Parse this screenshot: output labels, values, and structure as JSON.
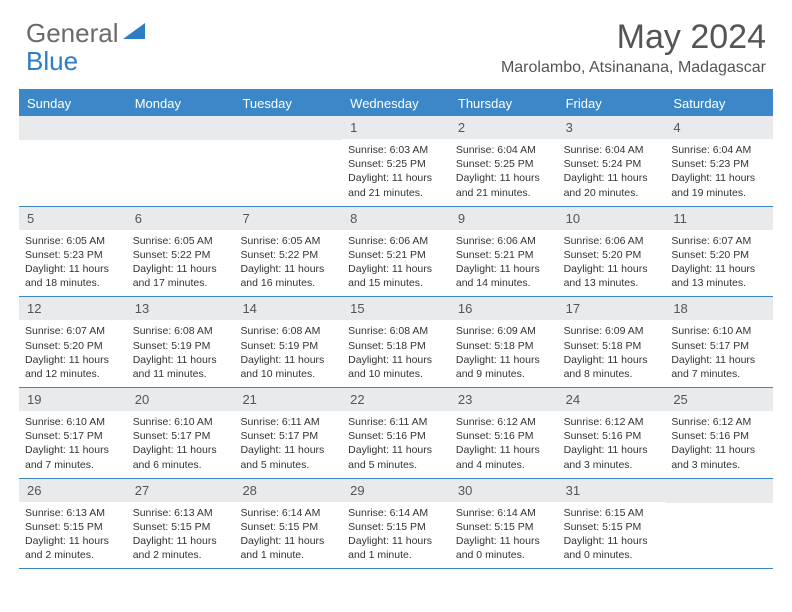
{
  "logo": {
    "text1": "General",
    "text2": "Blue"
  },
  "title": "May 2024",
  "location": "Marolambo, Atsinanana, Madagascar",
  "colors": {
    "header_bg": "#3b87c8",
    "header_fg": "#ffffff",
    "daynum_bg": "#e9eaec",
    "daynum_fg": "#555555",
    "text": "#333333",
    "rule": "#3b87c8",
    "logo_gray": "#6a6a6a",
    "logo_blue": "#2d7dc4"
  },
  "day_headers": [
    "Sunday",
    "Monday",
    "Tuesday",
    "Wednesday",
    "Thursday",
    "Friday",
    "Saturday"
  ],
  "weeks": [
    [
      {
        "n": "",
        "sr": "",
        "ss": "",
        "dl": ""
      },
      {
        "n": "",
        "sr": "",
        "ss": "",
        "dl": ""
      },
      {
        "n": "",
        "sr": "",
        "ss": "",
        "dl": ""
      },
      {
        "n": "1",
        "sr": "6:03 AM",
        "ss": "5:25 PM",
        "dl": "11 hours and 21 minutes."
      },
      {
        "n": "2",
        "sr": "6:04 AM",
        "ss": "5:25 PM",
        "dl": "11 hours and 21 minutes."
      },
      {
        "n": "3",
        "sr": "6:04 AM",
        "ss": "5:24 PM",
        "dl": "11 hours and 20 minutes."
      },
      {
        "n": "4",
        "sr": "6:04 AM",
        "ss": "5:23 PM",
        "dl": "11 hours and 19 minutes."
      }
    ],
    [
      {
        "n": "5",
        "sr": "6:05 AM",
        "ss": "5:23 PM",
        "dl": "11 hours and 18 minutes."
      },
      {
        "n": "6",
        "sr": "6:05 AM",
        "ss": "5:22 PM",
        "dl": "11 hours and 17 minutes."
      },
      {
        "n": "7",
        "sr": "6:05 AM",
        "ss": "5:22 PM",
        "dl": "11 hours and 16 minutes."
      },
      {
        "n": "8",
        "sr": "6:06 AM",
        "ss": "5:21 PM",
        "dl": "11 hours and 15 minutes."
      },
      {
        "n": "9",
        "sr": "6:06 AM",
        "ss": "5:21 PM",
        "dl": "11 hours and 14 minutes."
      },
      {
        "n": "10",
        "sr": "6:06 AM",
        "ss": "5:20 PM",
        "dl": "11 hours and 13 minutes."
      },
      {
        "n": "11",
        "sr": "6:07 AM",
        "ss": "5:20 PM",
        "dl": "11 hours and 13 minutes."
      }
    ],
    [
      {
        "n": "12",
        "sr": "6:07 AM",
        "ss": "5:20 PM",
        "dl": "11 hours and 12 minutes."
      },
      {
        "n": "13",
        "sr": "6:08 AM",
        "ss": "5:19 PM",
        "dl": "11 hours and 11 minutes."
      },
      {
        "n": "14",
        "sr": "6:08 AM",
        "ss": "5:19 PM",
        "dl": "11 hours and 10 minutes."
      },
      {
        "n": "15",
        "sr": "6:08 AM",
        "ss": "5:18 PM",
        "dl": "11 hours and 10 minutes."
      },
      {
        "n": "16",
        "sr": "6:09 AM",
        "ss": "5:18 PM",
        "dl": "11 hours and 9 minutes."
      },
      {
        "n": "17",
        "sr": "6:09 AM",
        "ss": "5:18 PM",
        "dl": "11 hours and 8 minutes."
      },
      {
        "n": "18",
        "sr": "6:10 AM",
        "ss": "5:17 PM",
        "dl": "11 hours and 7 minutes."
      }
    ],
    [
      {
        "n": "19",
        "sr": "6:10 AM",
        "ss": "5:17 PM",
        "dl": "11 hours and 7 minutes."
      },
      {
        "n": "20",
        "sr": "6:10 AM",
        "ss": "5:17 PM",
        "dl": "11 hours and 6 minutes."
      },
      {
        "n": "21",
        "sr": "6:11 AM",
        "ss": "5:17 PM",
        "dl": "11 hours and 5 minutes."
      },
      {
        "n": "22",
        "sr": "6:11 AM",
        "ss": "5:16 PM",
        "dl": "11 hours and 5 minutes."
      },
      {
        "n": "23",
        "sr": "6:12 AM",
        "ss": "5:16 PM",
        "dl": "11 hours and 4 minutes."
      },
      {
        "n": "24",
        "sr": "6:12 AM",
        "ss": "5:16 PM",
        "dl": "11 hours and 3 minutes."
      },
      {
        "n": "25",
        "sr": "6:12 AM",
        "ss": "5:16 PM",
        "dl": "11 hours and 3 minutes."
      }
    ],
    [
      {
        "n": "26",
        "sr": "6:13 AM",
        "ss": "5:15 PM",
        "dl": "11 hours and 2 minutes."
      },
      {
        "n": "27",
        "sr": "6:13 AM",
        "ss": "5:15 PM",
        "dl": "11 hours and 2 minutes."
      },
      {
        "n": "28",
        "sr": "6:14 AM",
        "ss": "5:15 PM",
        "dl": "11 hours and 1 minute."
      },
      {
        "n": "29",
        "sr": "6:14 AM",
        "ss": "5:15 PM",
        "dl": "11 hours and 1 minute."
      },
      {
        "n": "30",
        "sr": "6:14 AM",
        "ss": "5:15 PM",
        "dl": "11 hours and 0 minutes."
      },
      {
        "n": "31",
        "sr": "6:15 AM",
        "ss": "5:15 PM",
        "dl": "11 hours and 0 minutes."
      },
      {
        "n": "",
        "sr": "",
        "ss": "",
        "dl": ""
      }
    ]
  ],
  "labels": {
    "sunrise": "Sunrise:",
    "sunset": "Sunset:",
    "daylight": "Daylight:"
  }
}
